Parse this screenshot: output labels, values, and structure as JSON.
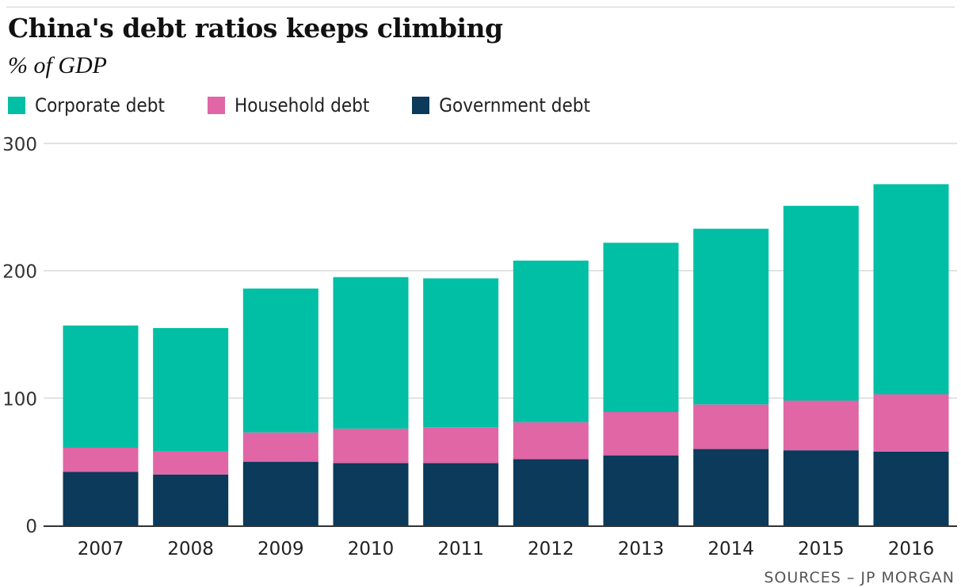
{
  "title": "China's debt ratios keeps climbing",
  "subtitle": "% of GDP",
  "source": "SOURCES – JP MORGAN",
  "colors": {
    "corporate": "#00bfa5",
    "household": "#e066a6",
    "government": "#0b3a5a",
    "grid": "#d9d9d9",
    "axis": "#333333"
  },
  "legend": [
    {
      "label": "Corporate debt",
      "color": "#00bfa5"
    },
    {
      "label": "Household debt",
      "color": "#e066a6"
    },
    {
      "label": "Government debt",
      "color": "#0b3a5a"
    }
  ],
  "chart_data": {
    "type": "bar",
    "stacked": true,
    "categories": [
      "2007",
      "2008",
      "2009",
      "2010",
      "2011",
      "2012",
      "2013",
      "2014",
      "2015",
      "2016"
    ],
    "series": [
      {
        "name": "Government debt",
        "color": "#0b3a5a",
        "values": [
          42,
          40,
          50,
          49,
          49,
          52,
          55,
          60,
          59,
          58
        ]
      },
      {
        "name": "Household debt",
        "color": "#e066a6",
        "values": [
          19,
          18,
          23,
          27,
          28,
          29,
          34,
          35,
          39,
          45
        ]
      },
      {
        "name": "Corporate debt",
        "color": "#00bfa5",
        "values": [
          96,
          97,
          113,
          119,
          117,
          127,
          133,
          138,
          153,
          165
        ]
      }
    ],
    "yticks": [
      0,
      100,
      200,
      300
    ],
    "ylim": [
      0,
      300
    ],
    "grid": true,
    "legend_position": "top-left"
  }
}
